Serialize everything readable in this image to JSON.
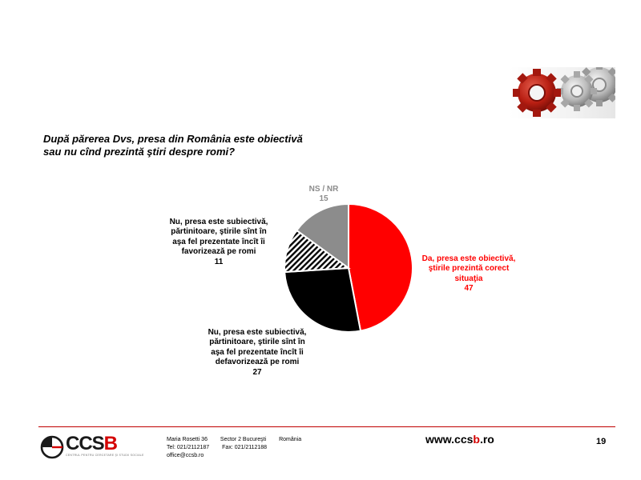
{
  "question": {
    "line1": "După părerea Dvs, presa din România este obiectivă",
    "line2": "sau nu cînd prezintă ştiri despre romi?"
  },
  "chart_data": {
    "type": "pie",
    "title": "",
    "slices": [
      {
        "key": "da",
        "label_lines": [
          "Da, presa este obiectivă,",
          "ştirile prezintă corect",
          "situaţia"
        ],
        "value": 47,
        "value_text": "47",
        "color": "#ff0000",
        "pattern": "solid"
      },
      {
        "key": "defav",
        "label_lines": [
          "Nu, presa este subiectivă,",
          "părtinitoare, ştirile sînt în",
          "aşa fel prezentate încît îi",
          "defavorizează pe romi"
        ],
        "value": 27,
        "value_text": "27",
        "color": "#000000",
        "pattern": "solid"
      },
      {
        "key": "fav",
        "label_lines": [
          "Nu, presa este subiectivă,",
          "părtinitoare, ştirile sînt în",
          "aşa fel prezentate încît îi",
          "favorizează pe romi"
        ],
        "value": 11,
        "value_text": "11",
        "color": "#000000",
        "pattern": "diagonal-stripes"
      },
      {
        "key": "nsnr",
        "label_lines": [
          "NS / NR"
        ],
        "value": 15,
        "value_text": "15",
        "color": "#8c8c8c",
        "pattern": "solid"
      }
    ],
    "start": "12 o'clock",
    "direction": "clockwise"
  },
  "footer": {
    "logo": {
      "word_part1": "CCS",
      "word_part2": "B",
      "tagline": "CENTRUL PENTRU CERCETARE ŞI STUDII SOCIALE"
    },
    "address": {
      "street": "Maria Rosetti 36",
      "sector": "Sector 2 Bucureşti",
      "country": "România",
      "tel": "Tel: 021/2112187",
      "fax": "Fax: 021/2112188",
      "email": "office@ccsb.ro"
    },
    "website": {
      "prefix": "www.ccs",
      "highlight": "b",
      "suffix": ".ro"
    },
    "page_number": "19"
  },
  "colors": {
    "accent": "#d40000",
    "rule": "#c00000"
  }
}
